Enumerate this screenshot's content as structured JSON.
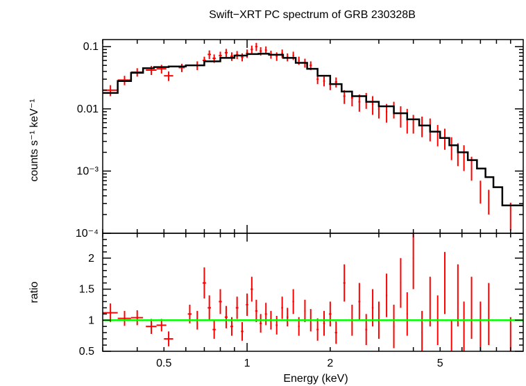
{
  "chart_data": [
    {
      "type": "scatter",
      "title": "Swift−XRT PC spectrum of GRB 230328B",
      "ylabel": "counts s⁻¹ keV⁻¹",
      "xscale": "log",
      "yscale": "log",
      "xlim": [
        0.3,
        10
      ],
      "ylim": [
        0.0001,
        0.13
      ],
      "x_ticks": [
        {
          "value": 0.5,
          "label": "0.5"
        },
        {
          "value": 1,
          "label": "1"
        },
        {
          "value": 2,
          "label": "2"
        },
        {
          "value": 5,
          "label": "5"
        }
      ],
      "y_ticks": [
        {
          "value": 0.1,
          "label": "0.1"
        },
        {
          "value": 0.01,
          "label": "0.01"
        },
        {
          "value": 0.001,
          "label": "10⁻³"
        },
        {
          "value": 0.0001,
          "label": "10⁻⁴"
        }
      ],
      "colors": {
        "data": "#ff0000",
        "model": "#000000"
      },
      "series": [
        {
          "kind": "data",
          "points": [
            [
              0.32,
              0.02,
              0.02,
              0.004
            ],
            [
              0.36,
              0.029,
              0.02,
              0.005
            ],
            [
              0.4,
              0.039,
              0.02,
              0.006
            ],
            [
              0.45,
              0.042,
              0.02,
              0.007
            ],
            [
              0.49,
              0.044,
              0.02,
              0.007
            ],
            [
              0.52,
              0.034,
              0.02,
              0.006
            ],
            [
              0.58,
              0.046,
              0.015,
              0.007
            ],
            [
              0.66,
              0.05,
              0.01,
              0.008
            ],
            [
              0.7,
              0.06,
              0.01,
              0.009
            ],
            [
              0.73,
              0.075,
              0.01,
              0.012
            ],
            [
              0.76,
              0.065,
              0.01,
              0.01
            ],
            [
              0.8,
              0.072,
              0.01,
              0.011
            ],
            [
              0.84,
              0.08,
              0.01,
              0.012
            ],
            [
              0.88,
              0.07,
              0.01,
              0.011
            ],
            [
              0.92,
              0.074,
              0.01,
              0.011
            ],
            [
              0.96,
              0.068,
              0.01,
              0.01
            ],
            [
              1.0,
              0.078,
              0.01,
              0.012
            ],
            [
              1.04,
              0.09,
              0.01,
              0.014
            ],
            [
              1.08,
              0.1,
              0.01,
              0.015
            ],
            [
              1.12,
              0.085,
              0.01,
              0.013
            ],
            [
              1.17,
              0.088,
              0.01,
              0.013
            ],
            [
              1.22,
              0.075,
              0.01,
              0.011
            ],
            [
              1.28,
              0.07,
              0.01,
              0.011
            ],
            [
              1.34,
              0.078,
              0.01,
              0.012
            ],
            [
              1.4,
              0.068,
              0.01,
              0.01
            ],
            [
              1.47,
              0.072,
              0.01,
              0.011
            ],
            [
              1.54,
              0.06,
              0.01,
              0.009
            ],
            [
              1.62,
              0.055,
              0.01,
              0.009
            ],
            [
              1.7,
              0.05,
              0.015,
              0.008
            ],
            [
              1.8,
              0.03,
              0.015,
              0.005
            ],
            [
              1.9,
              0.028,
              0.015,
              0.005
            ],
            [
              2.0,
              0.025,
              0.02,
              0.005
            ],
            [
              2.1,
              0.027,
              0.02,
              0.005
            ],
            [
              2.25,
              0.016,
              0.02,
              0.004
            ],
            [
              2.4,
              0.015,
              0.02,
              0.004
            ],
            [
              2.55,
              0.013,
              0.02,
              0.004
            ],
            [
              2.7,
              0.014,
              0.02,
              0.004
            ],
            [
              2.85,
              0.012,
              0.02,
              0.004
            ],
            [
              3.0,
              0.01,
              0.02,
              0.003
            ],
            [
              3.2,
              0.009,
              0.02,
              0.003
            ],
            [
              3.4,
              0.01,
              0.02,
              0.003
            ],
            [
              3.6,
              0.008,
              0.02,
              0.003
            ],
            [
              3.8,
              0.007,
              0.02,
              0.003
            ],
            [
              4.0,
              0.006,
              0.02,
              0.002
            ],
            [
              4.3,
              0.0055,
              0.02,
              0.002
            ],
            [
              4.6,
              0.005,
              0.02,
              0.002
            ],
            [
              4.9,
              0.004,
              0.02,
              0.0015
            ],
            [
              5.2,
              0.0035,
              0.02,
              0.0013
            ],
            [
              5.5,
              0.0025,
              0.02,
              0.001
            ],
            [
              5.8,
              0.002,
              0.02,
              0.0008
            ],
            [
              6.1,
              0.0018,
              0.02,
              0.0008
            ],
            [
              6.5,
              0.0012,
              0.02,
              0.0005
            ],
            [
              7.0,
              0.0005,
              0.025,
              0.0002
            ],
            [
              7.5,
              0.00035,
              0.025,
              0.00015
            ],
            [
              9.0,
              0.00021,
              0.04,
              0.0001
            ]
          ]
        },
        {
          "kind": "model",
          "steps": [
            [
              0.3,
              0.018
            ],
            [
              0.34,
              0.028
            ],
            [
              0.38,
              0.038
            ],
            [
              0.42,
              0.045
            ],
            [
              0.46,
              0.047
            ],
            [
              0.52,
              0.048
            ],
            [
              0.6,
              0.05
            ],
            [
              0.7,
              0.058
            ],
            [
              0.8,
              0.066
            ],
            [
              0.9,
              0.072
            ],
            [
              1.0,
              0.076
            ],
            [
              1.1,
              0.077
            ],
            [
              1.2,
              0.074
            ],
            [
              1.35,
              0.066
            ],
            [
              1.5,
              0.055
            ],
            [
              1.65,
              0.044
            ],
            [
              1.8,
              0.034
            ],
            [
              2.0,
              0.025
            ],
            [
              2.2,
              0.019
            ],
            [
              2.4,
              0.016
            ],
            [
              2.7,
              0.013
            ],
            [
              3.0,
              0.011
            ],
            [
              3.4,
              0.0085
            ],
            [
              3.8,
              0.0068
            ],
            [
              4.2,
              0.0054
            ],
            [
              4.6,
              0.0043
            ],
            [
              5.0,
              0.0034
            ],
            [
              5.4,
              0.0026
            ],
            [
              5.8,
              0.002
            ],
            [
              6.3,
              0.0015
            ],
            [
              6.8,
              0.0011
            ],
            [
              7.3,
              0.0008
            ],
            [
              7.8,
              0.00055
            ],
            [
              8.4,
              0.00028
            ],
            [
              10.0,
              0.00028
            ]
          ]
        }
      ]
    },
    {
      "type": "scatter",
      "xlabel": "Energy (keV)",
      "ylabel": "ratio",
      "xscale": "log",
      "xlim": [
        0.3,
        10
      ],
      "ylim": [
        0.5,
        2.4
      ],
      "x_ticks": [
        {
          "value": 0.5,
          "label": "0.5"
        },
        {
          "value": 1,
          "label": "1"
        },
        {
          "value": 2,
          "label": "2"
        },
        {
          "value": 5,
          "label": "5"
        }
      ],
      "y_ticks": [
        {
          "value": 0.5,
          "label": "0.5"
        },
        {
          "value": 1,
          "label": "1"
        },
        {
          "value": 1.5,
          "label": "1.5"
        },
        {
          "value": 2,
          "label": "2"
        }
      ],
      "reference_line": 1,
      "colors": {
        "data": "#ff0000",
        "reference": "#00ff00"
      },
      "series": [
        {
          "kind": "data",
          "points": [
            [
              0.32,
              1.12,
              0.02,
              0.15
            ],
            [
              0.36,
              1.03,
              0.02,
              0.12
            ],
            [
              0.4,
              1.04,
              0.02,
              0.12
            ],
            [
              0.45,
              0.9,
              0.02,
              0.12
            ],
            [
              0.49,
              0.92,
              0.02,
              0.1
            ],
            [
              0.52,
              0.7,
              0.02,
              0.12
            ],
            [
              0.62,
              1.1,
              0.01,
              0.15
            ],
            [
              0.66,
              1.0,
              0.01,
              0.15
            ],
            [
              0.7,
              1.6,
              0.01,
              0.25
            ],
            [
              0.73,
              1.2,
              0.01,
              0.2
            ],
            [
              0.76,
              0.85,
              0.01,
              0.15
            ],
            [
              0.8,
              1.3,
              0.01,
              0.2
            ],
            [
              0.84,
              1.05,
              0.01,
              0.18
            ],
            [
              0.88,
              0.9,
              0.01,
              0.15
            ],
            [
              0.92,
              1.2,
              0.01,
              0.18
            ],
            [
              0.96,
              0.82,
              0.01,
              0.15
            ],
            [
              1.0,
              1.25,
              0.01,
              0.18
            ],
            [
              1.04,
              1.5,
              0.01,
              0.2
            ],
            [
              1.08,
              1.15,
              0.01,
              0.18
            ],
            [
              1.12,
              0.95,
              0.01,
              0.15
            ],
            [
              1.17,
              1.1,
              0.01,
              0.18
            ],
            [
              1.22,
              1.0,
              0.01,
              0.15
            ],
            [
              1.28,
              0.92,
              0.01,
              0.15
            ],
            [
              1.34,
              1.2,
              0.01,
              0.18
            ],
            [
              1.4,
              1.05,
              0.01,
              0.15
            ],
            [
              1.47,
              1.3,
              0.01,
              0.2
            ],
            [
              1.54,
              0.9,
              0.01,
              0.15
            ],
            [
              1.62,
              1.15,
              0.01,
              0.18
            ],
            [
              1.7,
              1.0,
              0.015,
              0.18
            ],
            [
              1.8,
              0.85,
              0.015,
              0.18
            ],
            [
              1.9,
              0.95,
              0.015,
              0.2
            ],
            [
              2.0,
              1.1,
              0.02,
              0.2
            ],
            [
              2.1,
              0.8,
              0.02,
              0.18
            ],
            [
              2.25,
              1.6,
              0.02,
              0.3
            ],
            [
              2.4,
              1.0,
              0.02,
              0.25
            ],
            [
              2.55,
              1.3,
              0.02,
              0.3
            ],
            [
              2.7,
              0.85,
              0.02,
              0.25
            ],
            [
              2.85,
              1.2,
              0.02,
              0.3
            ],
            [
              3.0,
              1.0,
              0.02,
              0.3
            ],
            [
              3.2,
              1.4,
              0.02,
              0.35
            ],
            [
              3.4,
              0.9,
              0.02,
              0.35
            ],
            [
              3.6,
              1.6,
              0.02,
              0.4
            ],
            [
              3.8,
              1.1,
              0.02,
              0.35
            ],
            [
              4.0,
              2.0,
              0.02,
              0.5
            ],
            [
              4.3,
              0.8,
              0.02,
              0.35
            ],
            [
              4.6,
              1.3,
              0.02,
              0.4
            ],
            [
              4.9,
              1.0,
              0.02,
              0.4
            ],
            [
              5.2,
              1.6,
              0.02,
              0.5
            ],
            [
              5.5,
              0.7,
              0.02,
              0.3
            ],
            [
              5.8,
              1.4,
              0.02,
              0.5
            ],
            [
              6.1,
              0.9,
              0.02,
              0.4
            ],
            [
              6.5,
              1.2,
              0.02,
              0.5
            ],
            [
              7.0,
              0.9,
              0.025,
              0.4
            ],
            [
              7.5,
              1.1,
              0.025,
              0.5
            ],
            [
              9.0,
              0.75,
              0.04,
              0.3
            ]
          ]
        }
      ]
    }
  ]
}
